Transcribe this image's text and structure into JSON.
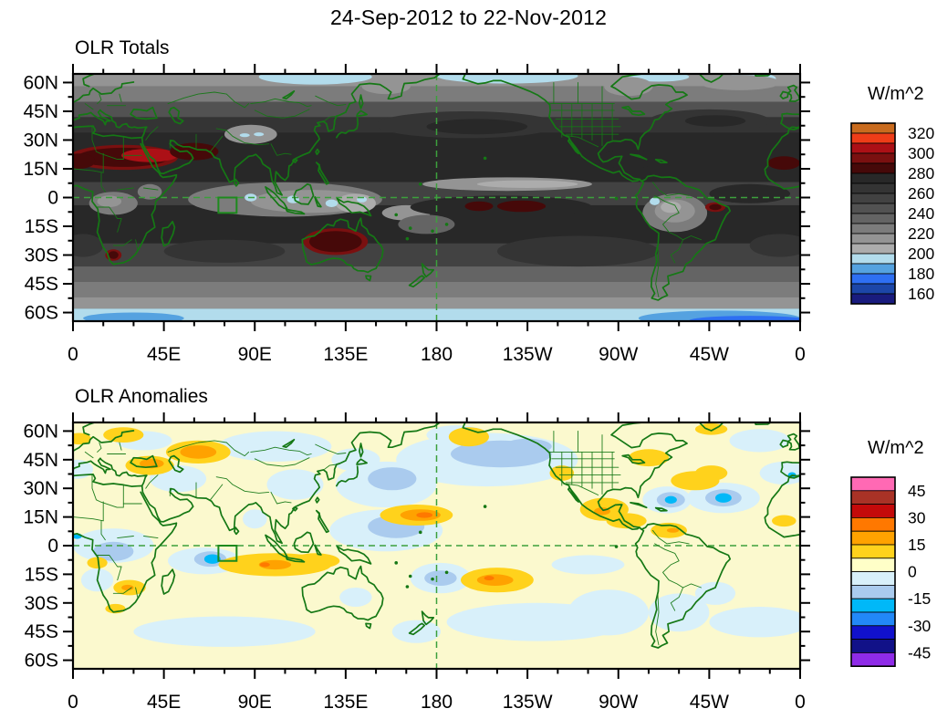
{
  "title": "24-Sep-2012 to 22-Nov-2012",
  "axes": {
    "lat_labels": [
      "60N",
      "45N",
      "30N",
      "15N",
      "0",
      "15S",
      "30S",
      "45S",
      "60S"
    ],
    "lat_values": [
      60,
      45,
      30,
      15,
      0,
      -15,
      -30,
      -45,
      -60
    ],
    "lon_labels": [
      "0",
      "45E",
      "90E",
      "135E",
      "180",
      "135W",
      "90W",
      "45W",
      "0"
    ],
    "lon_values": [
      0,
      45,
      90,
      135,
      180,
      225,
      270,
      315,
      360
    ]
  },
  "panels": [
    {
      "id": "totals",
      "title": "OLR Totals",
      "units": "W/m^2",
      "colorbar": {
        "tick_labels": [
          "320",
          "300",
          "280",
          "260",
          "240",
          "220",
          "200",
          "180",
          "160"
        ],
        "colors_top_to_bottom": [
          "#C96B1E",
          "#EE3D18",
          "#AC1016",
          "#7A1010",
          "#460909",
          "#282828",
          "#343434",
          "#424242",
          "#525252",
          "#646464",
          "#7C7C7C",
          "#949494",
          "#ACACAC",
          "#B2DCEC",
          "#55A2E0",
          "#2E6FF2",
          "#1C46A8",
          "#191B7E"
        ]
      }
    },
    {
      "id": "anomalies",
      "title": "OLR Anomalies",
      "units": "W/m^2",
      "colorbar": {
        "tick_labels": [
          "45",
          "30",
          "15",
          "0",
          "-15",
          "-30",
          "-45"
        ],
        "colors_top_to_bottom": [
          "#FF69B4",
          "#A93226",
          "#C40A0A",
          "#FF7800",
          "#FFA200",
          "#FFD21C",
          "#FFFFC8",
          "#D8F0FA",
          "#AACBEE",
          "#00B8F8",
          "#2288F8",
          "#1111CC",
          "#111188",
          "#8F2BE8"
        ]
      }
    }
  ],
  "colors": {
    "coastline_green": "#157815",
    "dash_green": "#3CA03C",
    "box_green": "#1D8A1D",
    "axis_black": "#000000",
    "anomaly_background": "#FBF9CE"
  },
  "chart_data": [
    {
      "type": "heatmap",
      "subtype": "filled-contour-world-map",
      "name": "OLR Totals",
      "title": "OLR Totals",
      "units": "W/m^2",
      "lon_range": [
        0,
        360
      ],
      "lat_range": [
        -64.5,
        64.5
      ],
      "contour_levels": [
        160,
        170,
        180,
        190,
        200,
        210,
        220,
        230,
        240,
        250,
        260,
        270,
        280,
        290,
        300,
        310,
        320
      ],
      "colors_low_to_high": [
        "#191B7E",
        "#1C46A8",
        "#2E6FF2",
        "#55A2E0",
        "#B2DCEC",
        "#ACACAC",
        "#949494",
        "#7C7C7C",
        "#646464",
        "#525252",
        "#424242",
        "#343434",
        "#282828",
        "#460909",
        "#7A1010",
        "#AC1016",
        "#EE3D18",
        "#C96B1E"
      ],
      "notable_features": [
        "High OLR (>300 W/m^2, dark red): Sahara-Arabia-NW India band ~15-30N",
        "High OLR (dark red): central Australia ~18-30S",
        "High OLR (dark red): equatorial central Pacific just south of equator near 175W-135W",
        "High OLR (dark red spots): southern Africa ~30S and NE Brazil coast",
        "Low OLR (<200 W/m^2, light blue): poleward of ~55N and ~55S",
        "Low OLR (light gray, deep convection): Maritime Continent/Indonesia, Pacific ITCZ just north of equator, Amazon basin, Congo basin"
      ]
    },
    {
      "type": "heatmap",
      "subtype": "filled-contour-world-map",
      "name": "OLR Anomalies",
      "title": "OLR Anomalies",
      "units": "W/m^2",
      "lon_range": [
        0,
        360
      ],
      "lat_range": [
        -64.5,
        64.5
      ],
      "contour_levels": [
        -45,
        -37.5,
        -30,
        -22.5,
        -15,
        -7.5,
        0,
        7.5,
        15,
        22.5,
        30,
        37.5,
        45
      ],
      "colors_low_to_high": [
        "#8F2BE8",
        "#111188",
        "#1111CC",
        "#2288F8",
        "#00B8F8",
        "#AACBEE",
        "#D8F0FA",
        "#FFFFC8",
        "#FFD21C",
        "#FFA200",
        "#FF7800",
        "#C40A0A",
        "#A93226",
        "#FF69B4"
      ],
      "notable_features": [
        "Positive anomalies (gold/orange, suppressed convection): Kazakhstan/central Asia ~45-55N, NW tropical Pacific ~10-20N near dateline, south Indian Ocean band ~5-15S, SE Pacific ~15-25S, Gulf of Mexico/Caribbean, Turkey/Black Sea, southern Africa",
        "Negative anomalies (blue/cyan, enhanced convection): N and NW Pacific mid-latitudes, west equatorial Pacific ~0-15N, central Indian Ocean near 70E 5-10S, equatorial Africa, central N Atlantic ~20-30N",
        "Green box region of interest near 72-81E, 0-8S",
        "Dashed green reference lines at the equator and the date line (180)"
      ]
    }
  ]
}
